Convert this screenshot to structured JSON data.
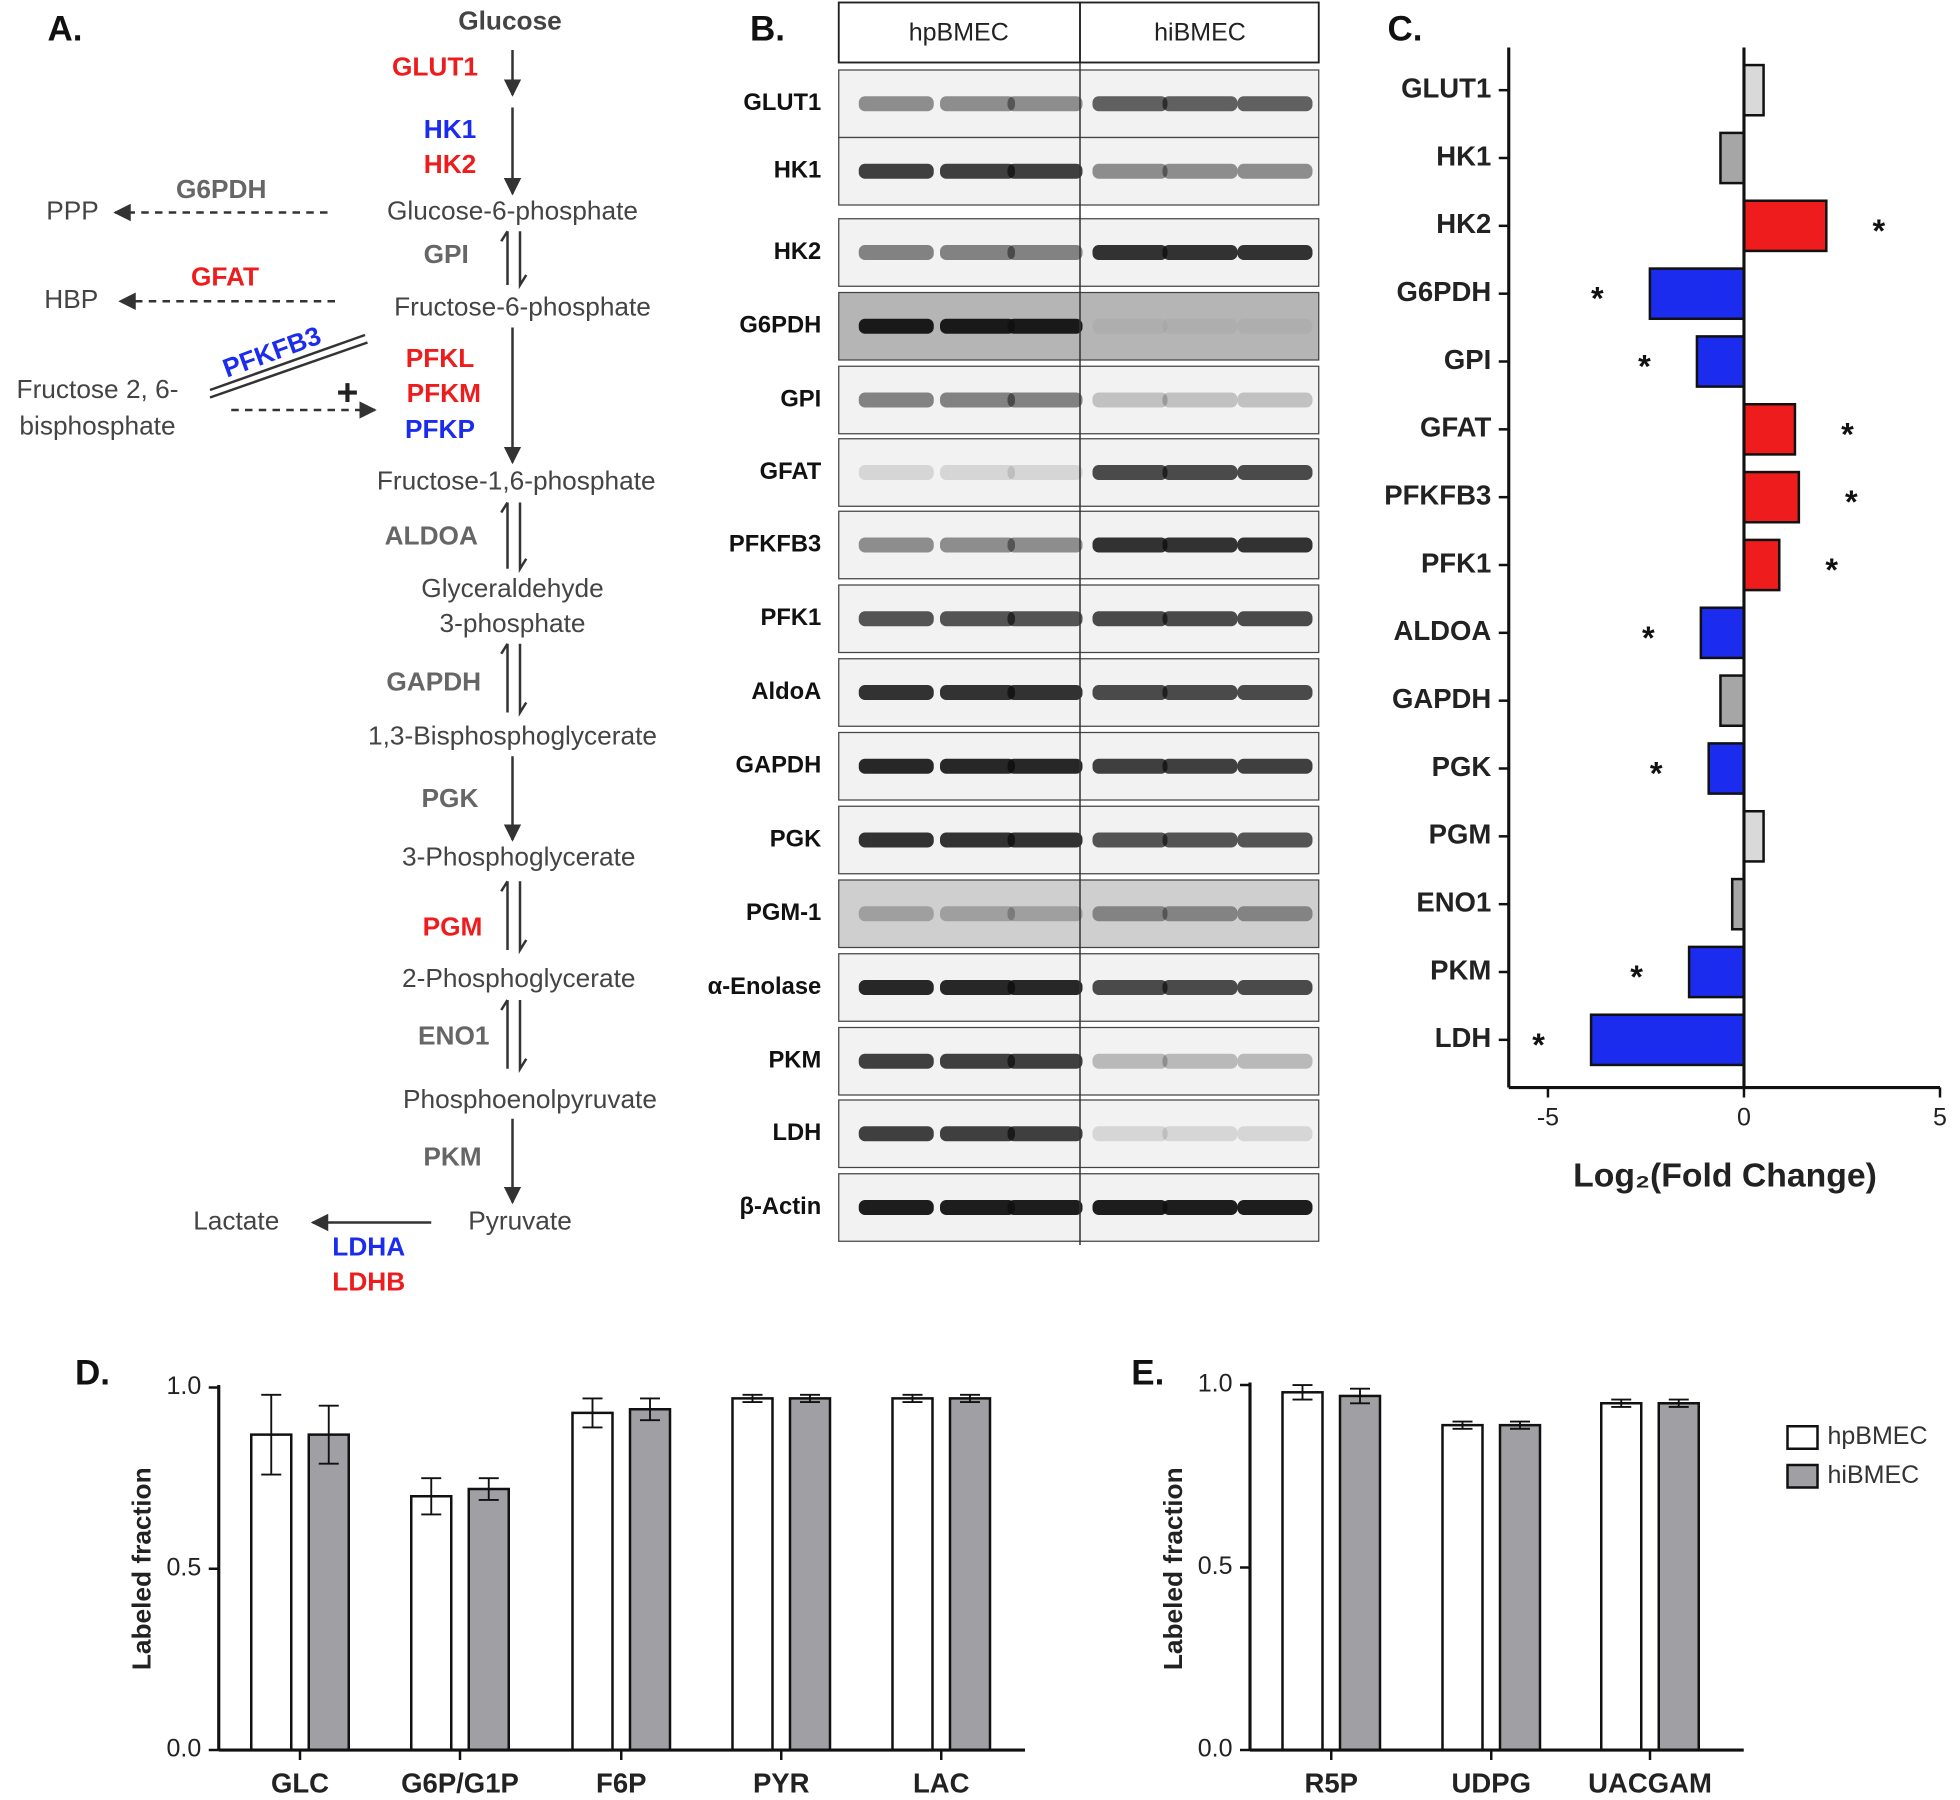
{
  "pathway": {
    "label": "A.",
    "metabolites": [
      "Glucose",
      "Glucose-6-phosphate",
      "Fructose-6-phosphate",
      "Fructose-1,6-phosphate",
      "Glyceraldehyde",
      "3-phosphate",
      "1,3-Bisphosphoglycerate",
      "3-Phosphoglycerate",
      "2-Phosphoglycerate",
      "Phosphoenolpyruvate",
      "Pyruvate"
    ],
    "side_products": [
      "PPP",
      "HBP",
      "Fructose 2, 6-",
      "bisphosphate",
      "Lactate"
    ],
    "enzymes": [
      "GLUT1",
      "HK1",
      "HK2",
      "G6PDH",
      "GPI",
      "GFAT",
      "PFKFB3",
      "PFKL",
      "PFKM",
      "PFKP",
      "ALDOA",
      "GAPDH",
      "PGK",
      "PGM",
      "ENO1",
      "PKM",
      "LDHA",
      "LDHB"
    ],
    "plus": "+"
  },
  "blot": {
    "label": "B.",
    "groups": [
      "hpBMEC",
      "hiBMEC"
    ],
    "rows": [
      "GLUT1",
      "HK1",
      "HK2",
      "G6PDH",
      "GPI",
      "GFAT",
      "PFKFB3",
      "PFK1",
      "AldoA",
      "GAPDH",
      "PGK",
      "PGM-1",
      "α-Enolase",
      "PKM",
      "LDH",
      "β-Actin"
    ]
  },
  "chart_data": [
    {
      "type": "bar",
      "orientation": "horizontal",
      "label": "C.",
      "categories": [
        "GLUT1",
        "HK1",
        "HK2",
        "G6PDH",
        "GPI",
        "GFAT",
        "PFKFB3",
        "PFK1",
        "ALDOA",
        "GAPDH",
        "PGK",
        "PGM",
        "ENO1",
        "PKM",
        "LDH"
      ],
      "values": [
        0.5,
        -0.6,
        2.1,
        -2.4,
        -1.2,
        1.3,
        1.4,
        0.9,
        -1.1,
        -0.6,
        -0.9,
        0.5,
        -0.3,
        -1.4,
        -3.9
      ],
      "colors": [
        "#d9d9d9",
        "#a6a6a6",
        "#ee1c1c",
        "#1c2cee",
        "#1c2cee",
        "#ee1c1c",
        "#ee1c1c",
        "#ee1c1c",
        "#1c2cee",
        "#a6a6a6",
        "#1c2cee",
        "#d9d9d9",
        "#a6a6a6",
        "#1c2cee",
        "#1c2cee"
      ],
      "annotations": [
        {
          "category": "HK2",
          "text": "*"
        },
        {
          "category": "G6PDH",
          "text": "*"
        },
        {
          "category": "GPI",
          "text": "*"
        },
        {
          "category": "GFAT",
          "text": "*"
        },
        {
          "category": "PFKFB3",
          "text": "*"
        },
        {
          "category": "PFK1",
          "text": "*"
        },
        {
          "category": "ALDOA",
          "text": "*"
        },
        {
          "category": "PGK",
          "text": "*"
        },
        {
          "category": "PKM",
          "text": "*"
        },
        {
          "category": "LDH",
          "text": "*"
        }
      ],
      "xlim": [
        -6,
        5
      ],
      "xticks": [
        -5,
        0,
        5
      ],
      "x_label": "Log₂(Fold Change)"
    },
    {
      "type": "bar",
      "label": "D.",
      "y_label": "Labeled fraction",
      "categories": [
        "GLC",
        "G6P/G1P",
        "F6P",
        "PYR",
        "LAC"
      ],
      "series": [
        {
          "name": "hpBMEC",
          "color": "#ffffff",
          "values": [
            0.87,
            0.7,
            0.93,
            0.97,
            0.97
          ],
          "errors": [
            0.11,
            0.05,
            0.04,
            0.01,
            0.01
          ]
        },
        {
          "name": "hiBMEC",
          "color": "#a0a0a4",
          "values": [
            0.87,
            0.72,
            0.94,
            0.97,
            0.97
          ],
          "errors": [
            0.08,
            0.03,
            0.03,
            0.01,
            0.01
          ]
        }
      ],
      "ylim": [
        0,
        1
      ],
      "yticks": [
        {
          "value": 0,
          "label": "0.0"
        },
        {
          "value": 0.5,
          "label": "0.5"
        },
        {
          "value": 1,
          "label": "1.0"
        }
      ]
    },
    {
      "type": "bar",
      "label": "E.",
      "y_label": "Labeled fraction",
      "categories": [
        "R5P",
        "UDPG",
        "UACGAM"
      ],
      "series": [
        {
          "color": "#ffffff",
          "values": [
            0.98,
            0.89,
            0.95
          ],
          "errors": [
            0.02,
            0.01,
            0.01
          ]
        },
        {
          "color": "#a0a0a4",
          "values": [
            0.97,
            0.89,
            0.95
          ],
          "errors": [
            0.02,
            0.01,
            0.01
          ]
        }
      ],
      "ylim": [
        0,
        1
      ],
      "yticks": [
        {
          "value": 0,
          "label": "0.0"
        },
        {
          "value": 0.5,
          "label": "0.5"
        },
        {
          "value": 1,
          "label": "1.0"
        }
      ]
    }
  ]
}
